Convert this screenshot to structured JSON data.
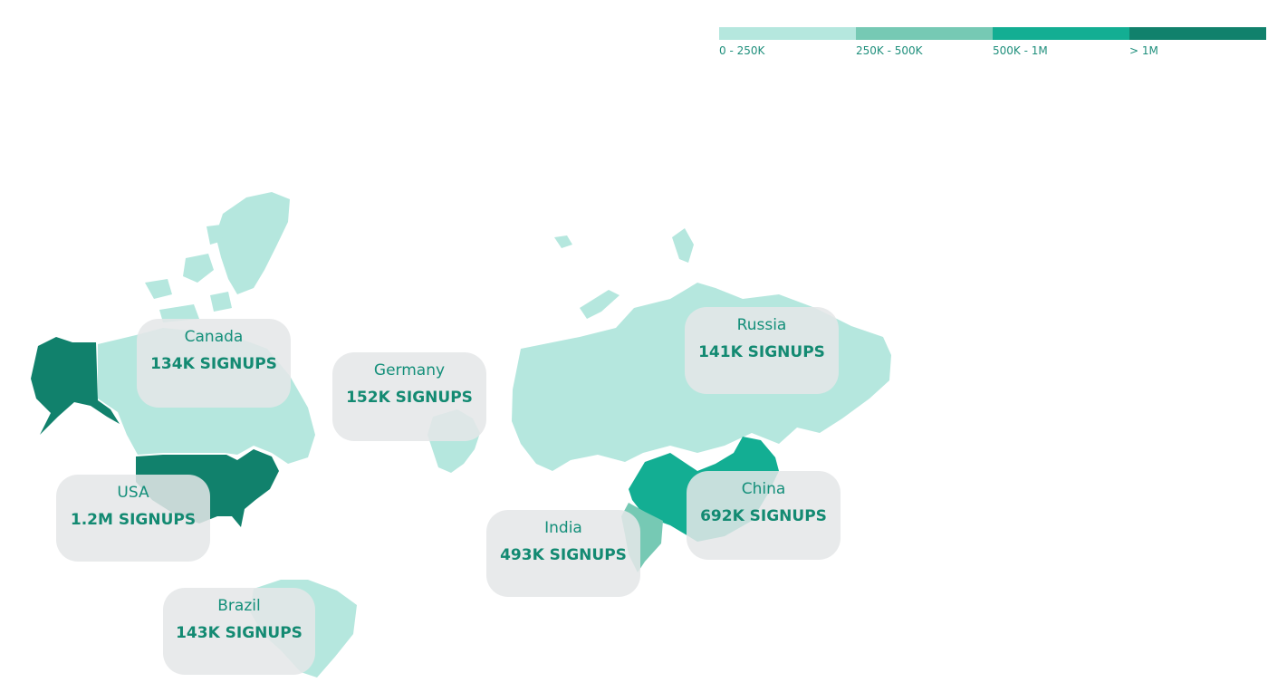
{
  "legend": {
    "items": [
      {
        "label": "0 - 250K",
        "color": "#b5e7de"
      },
      {
        "label": "250K - 500K",
        "color": "#76c9b4"
      },
      {
        "label": "500K - 1M",
        "color": "#13ae93"
      },
      {
        "label": "> 1M",
        "color": "#11816c"
      }
    ]
  },
  "regions": [
    {
      "name": "Canada",
      "value": "134K SIGNUPS",
      "signups": 134000,
      "color": "#b5e7de"
    },
    {
      "name": "Germany",
      "value": "152K SIGNUPS",
      "signups": 152000,
      "color": "#b5e7de"
    },
    {
      "name": "Russia",
      "value": "141K SIGNUPS",
      "signups": 141000,
      "color": "#b5e7de"
    },
    {
      "name": "China",
      "value": "692K SIGNUPS",
      "signups": 692000,
      "color": "#13ae93"
    },
    {
      "name": "USA",
      "value": "1.2M SIGNUPS",
      "signups": 1200000,
      "color": "#11816c"
    },
    {
      "name": "India",
      "value": "493K SIGNUPS",
      "signups": 493000,
      "color": "#76c9b4"
    },
    {
      "name": "Brazil",
      "value": "143K SIGNUPS",
      "signups": 143000,
      "color": "#b5e7de"
    }
  ]
}
